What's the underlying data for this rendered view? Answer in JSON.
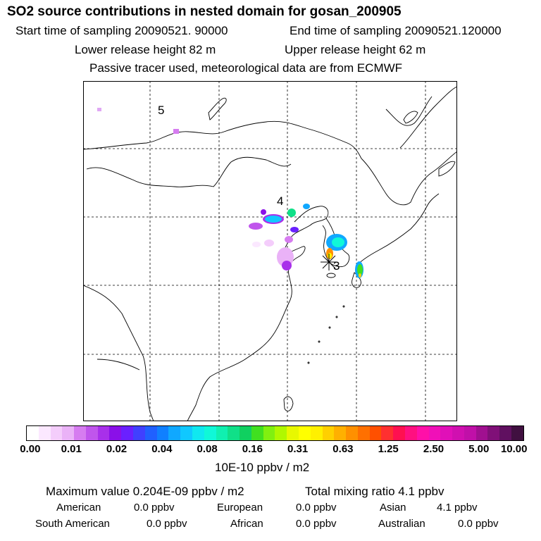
{
  "header": {
    "title": "SO2 source contributions in nested domain for gosan_200905",
    "start_label": "Start time of sampling 20090521. 90000",
    "end_label": "End time of sampling 20090521.120000",
    "lower_label": "Lower release height   82 m",
    "upper_label": "Upper release height   62 m",
    "note": "Passive tracer used, meteorological data are from ECMWF"
  },
  "map": {
    "labels": [
      "5",
      "4",
      "3"
    ]
  },
  "colorbar": {
    "ticks": [
      "0.00",
      "0.01",
      "0.02",
      "0.04",
      "0.08",
      "0.16",
      "0.31",
      "0.63",
      "1.25",
      "2.50",
      "5.00",
      "10.00"
    ],
    "unit": "10E-10 ppbv / m2",
    "colors": [
      "#ffffff",
      "#fbe8ff",
      "#f4cdfb",
      "#eab2f7",
      "#d67cf0",
      "#c055ec",
      "#a830ea",
      "#8a10e8",
      "#6a20ff",
      "#4040ff",
      "#2060ff",
      "#1080ff",
      "#10a8ff",
      "#10c8ff",
      "#10e8f0",
      "#10f8d8",
      "#10f0b0",
      "#10e088",
      "#10d060",
      "#40e020",
      "#80f010",
      "#b0f800",
      "#e8f800",
      "#ffff00",
      "#fff000",
      "#ffd000",
      "#ffb000",
      "#ff9000",
      "#ff7000",
      "#ff5000",
      "#ff3030",
      "#ff1050",
      "#ff1080",
      "#ff10a8",
      "#f010b8",
      "#e010b8",
      "#d010b0",
      "#c010a8",
      "#a01090",
      "#801078",
      "#601060",
      "#401040"
    ]
  },
  "footer": {
    "max_value": "Maximum value  0.204E-09 ppbv / m2",
    "total_mixing": "Total mixing ratio        4.1 ppbv",
    "american_label": "American",
    "american_value": "0.0 ppbv",
    "european_label": "European",
    "european_value": "0.0 ppbv",
    "asian_label": "Asian",
    "asian_value": "4.1 ppbv",
    "south_american_label": "South American",
    "south_american_value": "0.0 ppbv",
    "african_label": "African",
    "african_value": "0.0 ppbv",
    "australian_label": "Australian",
    "australian_value": "0.0 ppbv"
  }
}
